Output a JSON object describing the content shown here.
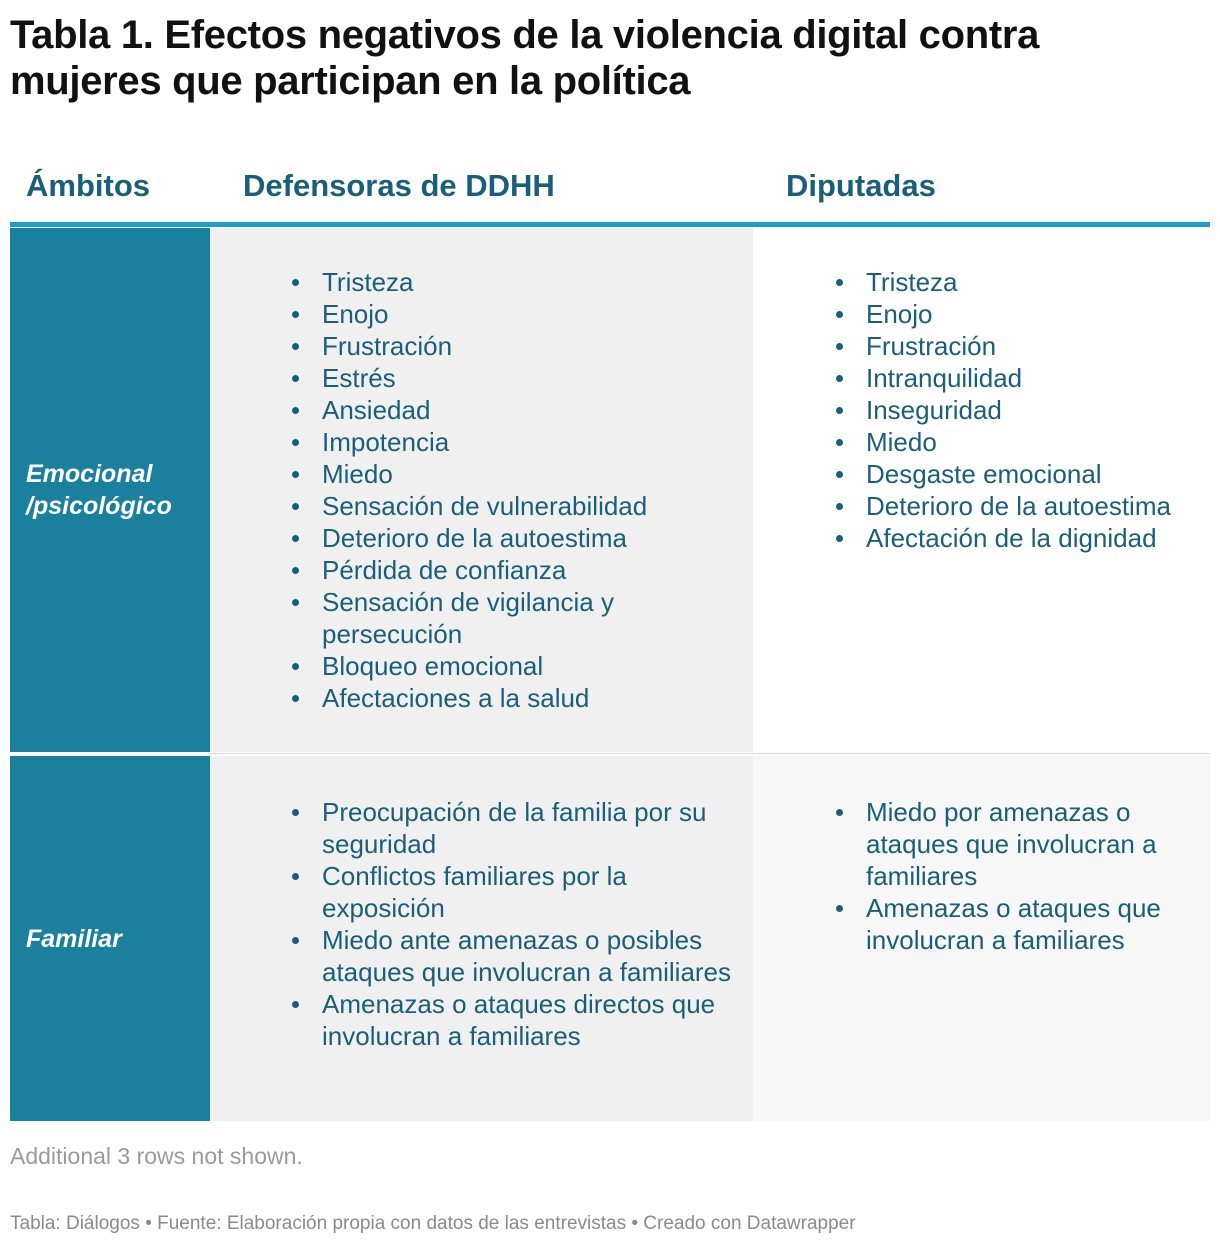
{
  "title": "Tabla 1. Efectos negativos de la violencia digital contra mujeres que participan en la política",
  "columns": [
    "Ámbitos",
    "Defensoras de DDHH",
    "Diputadas"
  ],
  "rows": [
    {
      "ambito": "Emocional /psicológico",
      "defensoras": [
        "Tristeza",
        "Enojo",
        "Frustración",
        "Estrés",
        "Ansiedad",
        "Impotencia",
        "Miedo",
        "Sensación de vulnerabilidad",
        "Deterioro de la autoestima",
        "Pérdida de confianza",
        "Sensación de vigilancia y persecución",
        "Bloqueo emocional",
        "Afectaciones a la salud"
      ],
      "diputadas": [
        "Tristeza",
        "Enojo",
        "Frustración",
        "Intranquilidad",
        "Inseguridad",
        "Miedo",
        "Desgaste emocional",
        "Deterioro de la autoestima",
        "Afectación de la dignidad"
      ]
    },
    {
      "ambito": "Familiar",
      "defensoras": [
        "Preocupación de la familia por su seguridad",
        "Conflictos familiares por la exposición",
        "Miedo ante amenazas o posibles ataques que involucran a familiares",
        "Amenazas o ataques directos que involucran a familiares"
      ],
      "diputadas": [
        "Miedo por amenazas o ataques que involucran a familiares",
        "Amenazas o ataques que involucran a familiares"
      ]
    }
  ],
  "note": "Additional 3 rows not shown.",
  "footer": "Tabla: Diálogos • Fuente: Elaboración propia con datos de las entrevistas • Creado con Datawrapper",
  "colors": {
    "title": "#111111",
    "header_text": "#1a5f7a",
    "header_rule": "#1a9fc6",
    "ambito_bg": "#1b7f9e",
    "list_text": "#1a5f7a",
    "defensoras_bg": "#f0f0f0"
  }
}
